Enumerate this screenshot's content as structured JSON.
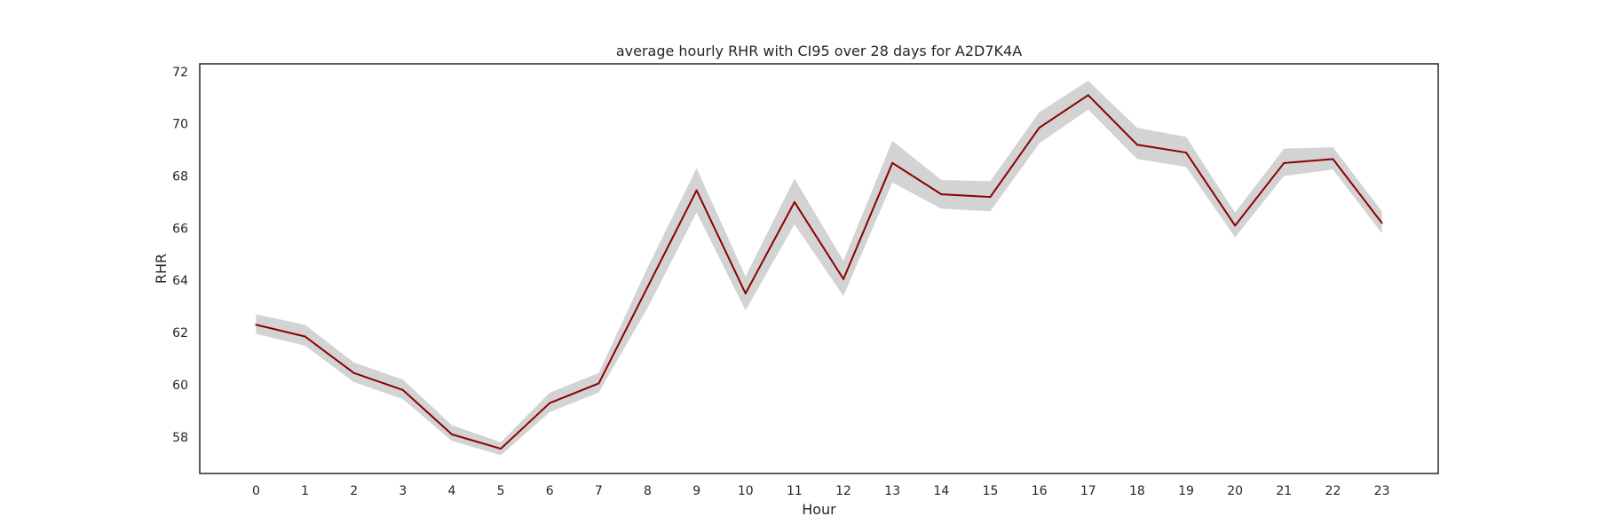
{
  "chart_data": {
    "type": "line",
    "title": "average hourly RHR with CI95 over 28 days for A2D7K4A",
    "xlabel": "Hour",
    "ylabel": "RHR",
    "x": [
      0,
      1,
      2,
      3,
      4,
      5,
      6,
      7,
      8,
      9,
      10,
      11,
      12,
      13,
      14,
      15,
      16,
      17,
      18,
      19,
      20,
      21,
      22,
      23
    ],
    "x_tick_labels": [
      "0",
      "1",
      "2",
      "3",
      "4",
      "5",
      "6",
      "7",
      "8",
      "9",
      "10",
      "11",
      "12",
      "13",
      "14",
      "15",
      "16",
      "17",
      "18",
      "19",
      "20",
      "21",
      "22",
      "23"
    ],
    "y_ticks": [
      58,
      60,
      62,
      64,
      66,
      68,
      70,
      72
    ],
    "y_tick_labels": [
      "58",
      "60",
      "62",
      "64",
      "66",
      "68",
      "70",
      "72"
    ],
    "xlim": [
      -1.15,
      24.15
    ],
    "ylim": [
      56.6,
      72.3
    ],
    "grid": false,
    "series": [
      {
        "values": [
          62.3,
          61.85,
          60.45,
          59.8,
          58.1,
          57.55,
          59.3,
          60.05,
          63.75,
          67.45,
          63.5,
          67.0,
          64.05,
          68.5,
          67.3,
          67.2,
          69.85,
          71.1,
          69.2,
          68.9,
          66.1,
          68.5,
          68.65,
          66.2
        ],
        "ci_lower": [
          61.95,
          61.5,
          60.1,
          59.45,
          57.85,
          57.3,
          58.95,
          59.7,
          62.95,
          66.6,
          62.85,
          66.15,
          63.4,
          67.75,
          66.75,
          66.65,
          69.25,
          70.55,
          68.65,
          68.35,
          65.65,
          68.0,
          68.25,
          65.8
        ],
        "ci_upper": [
          62.7,
          62.3,
          60.85,
          60.2,
          58.45,
          57.8,
          59.7,
          60.45,
          64.5,
          68.3,
          64.15,
          67.9,
          64.75,
          69.35,
          67.85,
          67.8,
          70.45,
          71.65,
          69.85,
          69.5,
          66.6,
          69.05,
          69.1,
          66.65
        ],
        "line_color": "#8b0000",
        "band_color": "#d3d3d3"
      }
    ]
  }
}
